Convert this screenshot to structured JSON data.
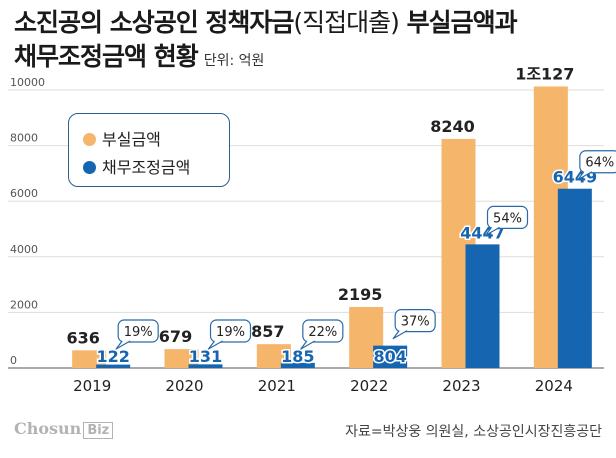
{
  "header": {
    "title_part1": "소진공의 소상공인 정책자금",
    "title_paren": "(직접대출)",
    "title_part2": "부실금액과",
    "title_line2": "채무조정금액 현황",
    "unit": "단위: 억원"
  },
  "chart_data": {
    "type": "bar",
    "categories": [
      "2019",
      "2020",
      "2021",
      "2022",
      "2023",
      "2024"
    ],
    "ylim": [
      0,
      10000
    ],
    "yticks": [
      0,
      2000,
      4000,
      6000,
      8000,
      10000
    ],
    "grid": true,
    "legend_position": "top-left",
    "series": [
      {
        "name": "부실금액",
        "color": "#f5b56a",
        "values": [
          636,
          679,
          857,
          2195,
          8240,
          10127
        ],
        "labels": [
          "636",
          "679",
          "857",
          "2195",
          "8240",
          "1조127"
        ]
      },
      {
        "name": "채무조정금액",
        "color": "#1565b0",
        "values": [
          122,
          131,
          185,
          804,
          4447,
          6449
        ],
        "labels": [
          "122",
          "131",
          "185",
          "804",
          "4447",
          "6449"
        ]
      }
    ],
    "ratios": [
      "19%",
      "19%",
      "22%",
      "37%",
      "54%",
      "64%"
    ]
  },
  "source": "자료=박상웅 의원실, 소상공인시장진흥공단",
  "logo": {
    "name": "Chosun",
    "badge": "Biz"
  }
}
